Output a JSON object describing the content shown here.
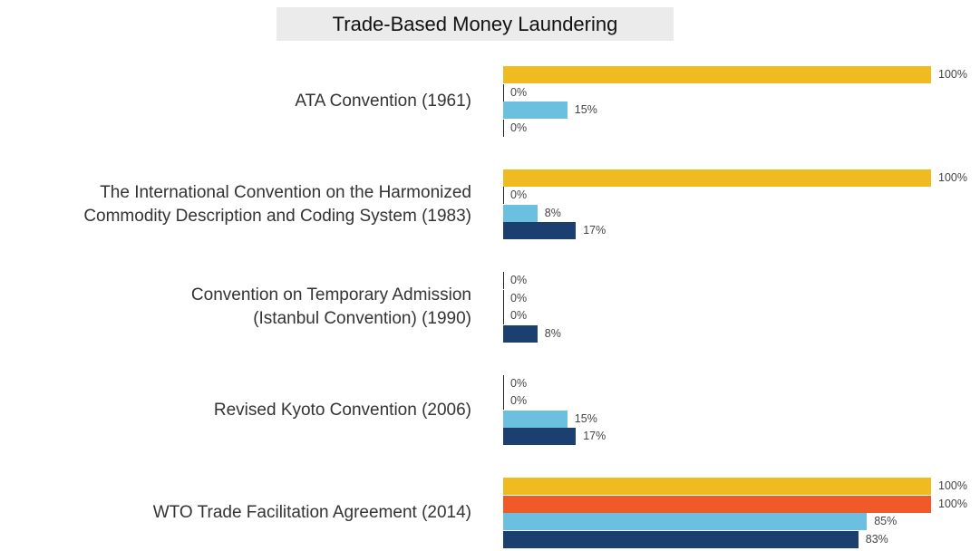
{
  "chart_data": {
    "type": "hbar",
    "title": "Trade-Based Money Laundering",
    "categories": [
      "ATA Convention (1961)",
      "The International Convention on the Harmonized\nCommodity Description and Coding System (1983)",
      "Convention on Temporary Admission\n(Istanbul Convention) (1990)",
      "Revised Kyoto Convention (2006)",
      "WTO Trade Facilitation Agreement (2014)"
    ],
    "xlim": [
      0,
      100
    ],
    "series": [
      {
        "color": "#f0bb21",
        "values": [
          100,
          100,
          0,
          0,
          100
        ],
        "value_labels": [
          "100%",
          "100%",
          "0%",
          "0%",
          "100%"
        ]
      },
      {
        "color": "#f05a28",
        "values": [
          0,
          0,
          0,
          0,
          100
        ],
        "value_labels": [
          "0%",
          "0%",
          "0%",
          "0%",
          "100%"
        ]
      },
      {
        "color": "#6bbfdf",
        "values": [
          15,
          8,
          0,
          15,
          85
        ],
        "value_labels": [
          "15%",
          "8%",
          "0%",
          "15%",
          "85%"
        ]
      },
      {
        "color": "#1b3f6e",
        "values": [
          0,
          17,
          8,
          17,
          83
        ],
        "value_labels": [
          "0%",
          "17%",
          "8%",
          "17%",
          "83%"
        ]
      }
    ]
  }
}
